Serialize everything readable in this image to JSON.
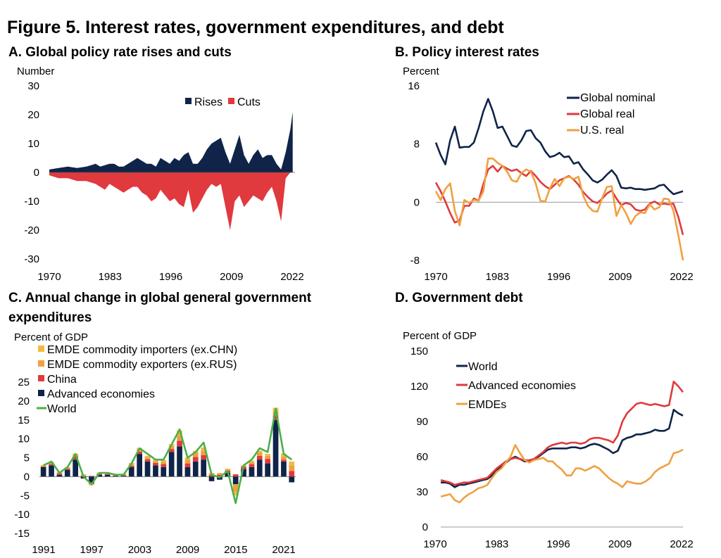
{
  "figure_title": "Figure 5. Interest rates, government expenditures, and debt",
  "colors": {
    "navy": "#0f2448",
    "red": "#e0393e",
    "orange": "#f0a040",
    "amber": "#f2bb3e",
    "green": "#4daf4a",
    "axis": "#999999"
  },
  "chart_data": [
    {
      "id": "A",
      "type": "area",
      "title": "A. Global policy rate rises and cuts",
      "ylabel": "Number",
      "ylim": [
        -30,
        30
      ],
      "yticks": [
        "30",
        "20",
        "10",
        "0",
        "-10",
        "-20",
        "-30"
      ],
      "xticks": [
        "1970",
        "1983",
        "1996",
        "2009",
        "2022"
      ],
      "xlim": [
        1970,
        2023
      ],
      "legend": [
        "Rises",
        "Cuts"
      ],
      "series": [
        {
          "name": "Rises",
          "x": [
            1970,
            1972,
            1974,
            1976,
            1978,
            1980,
            1981,
            1982,
            1983,
            1984,
            1985,
            1986,
            1987,
            1988,
            1989,
            1990,
            1991,
            1992,
            1993,
            1994,
            1995,
            1996,
            1997,
            1998,
            1999,
            2000,
            2001,
            2002,
            2003,
            2004,
            2005,
            2006,
            2007,
            2008,
            2009,
            2010,
            2011,
            2012,
            2013,
            2014,
            2015,
            2016,
            2017,
            2018,
            2019,
            2020,
            2021,
            2022,
            2022.5
          ],
          "values": [
            1,
            1.5,
            2,
            1.5,
            2,
            3,
            2,
            2.5,
            3,
            3,
            2,
            2,
            3,
            4,
            5,
            4,
            3,
            3,
            2,
            5,
            4,
            3,
            5,
            4,
            6,
            7,
            3,
            3,
            5,
            8,
            10,
            11,
            12,
            7,
            3,
            8,
            13,
            6,
            3,
            6,
            8,
            5,
            6,
            6,
            3,
            1,
            7,
            15,
            21
          ]
        },
        {
          "name": "Cuts",
          "x": [
            1970,
            1972,
            1974,
            1976,
            1978,
            1980,
            1981,
            1982,
            1983,
            1984,
            1985,
            1986,
            1987,
            1988,
            1989,
            1990,
            1991,
            1992,
            1993,
            1994,
            1995,
            1996,
            1997,
            1998,
            1999,
            2000,
            2001,
            2002,
            2003,
            2004,
            2005,
            2006,
            2007,
            2008,
            2009,
            2010,
            2011,
            2012,
            2013,
            2014,
            2015,
            2016,
            2017,
            2018,
            2019,
            2020,
            2021,
            2022,
            2022.5
          ],
          "values": [
            -1,
            -2,
            -2,
            -3,
            -3,
            -4,
            -5,
            -6,
            -4,
            -5,
            -6,
            -7,
            -6,
            -5,
            -5,
            -7,
            -8,
            -10,
            -9,
            -6,
            -8,
            -10,
            -9,
            -11,
            -12,
            -6,
            -14,
            -12,
            -9,
            -6,
            -4,
            -5,
            -4,
            -12,
            -20,
            -10,
            -8,
            -12,
            -10,
            -8,
            -9,
            -10,
            -7,
            -5,
            -10,
            -17,
            -2,
            0,
            0
          ]
        }
      ]
    },
    {
      "id": "B",
      "type": "line",
      "title": "B. Policy interest rates",
      "ylabel": "Percent",
      "ylim": [
        -8,
        16
      ],
      "yticks": [
        "16",
        "8",
        "0",
        "-8"
      ],
      "xticks": [
        "1970",
        "1983",
        "1996",
        "2009",
        "2022"
      ],
      "xlim": [
        1970,
        2022
      ],
      "legend": [
        "Global nominal",
        "Global real",
        "U.S. real"
      ],
      "x": [
        1970,
        1971,
        1972,
        1973,
        1974,
        1975,
        1976,
        1977,
        1978,
        1979,
        1980,
        1981,
        1982,
        1983,
        1984,
        1985,
        1986,
        1987,
        1988,
        1989,
        1990,
        1991,
        1992,
        1993,
        1994,
        1995,
        1996,
        1997,
        1998,
        1999,
        2000,
        2001,
        2002,
        2003,
        2004,
        2005,
        2006,
        2007,
        2008,
        2009,
        2010,
        2011,
        2012,
        2013,
        2014,
        2015,
        2016,
        2017,
        2018,
        2019,
        2020,
        2021,
        2022
      ],
      "series": [
        {
          "name": "Global nominal",
          "values": [
            8.2,
            6.5,
            5.2,
            8.5,
            10.4,
            7.5,
            7.6,
            7.6,
            8.2,
            10.2,
            12.5,
            14.2,
            12.5,
            10.2,
            10.4,
            9.1,
            7.8,
            7.6,
            8.5,
            9.8,
            9.9,
            8.8,
            8.2,
            7.0,
            6.2,
            6.4,
            6.8,
            6.2,
            6.3,
            5.3,
            5.5,
            4.5,
            3.8,
            3.0,
            2.7,
            3.1,
            3.8,
            4.4,
            3.6,
            2.0,
            1.9,
            2.0,
            1.8,
            1.8,
            1.7,
            1.8,
            1.9,
            2.3,
            2.4,
            1.7,
            1.1,
            1.3,
            1.5
          ]
        },
        {
          "name": "Global real",
          "values": [
            2.7,
            1.5,
            0.1,
            -1.5,
            -2.8,
            -2.5,
            -0.5,
            -0.5,
            0.5,
            0.2,
            2.5,
            4.5,
            5.0,
            4.2,
            5.0,
            4.6,
            4.3,
            4.5,
            4.0,
            3.6,
            4.3,
            3.6,
            2.8,
            2.2,
            1.8,
            2.4,
            3.0,
            3.3,
            3.6,
            3.1,
            2.4,
            1.4,
            0.7,
            0.1,
            -0.1,
            0.5,
            1.2,
            1.6,
            0.5,
            -0.4,
            -0.1,
            -0.3,
            -1.0,
            -1.2,
            -1.0,
            -0.2,
            0.1,
            -0.3,
            -0.2,
            -0.3,
            -0.2,
            -2.0,
            -4.5
          ]
        },
        {
          "name": "U.S. real",
          "values": [
            1.5,
            0.3,
            1.8,
            2.6,
            -1.2,
            -3.2,
            0.3,
            -0.1,
            0.3,
            0.2,
            1.5,
            6.0,
            6.0,
            5.4,
            5.0,
            4.2,
            3.0,
            2.8,
            4.0,
            4.5,
            4.2,
            2.6,
            0.2,
            0.1,
            1.9,
            3.2,
            2.2,
            3.3,
            3.5,
            3.2,
            3.5,
            0.9,
            -0.5,
            -1.2,
            -1.3,
            0.6,
            2.1,
            2.2,
            -1.9,
            -0.4,
            -1.5,
            -3.0,
            -1.9,
            -1.4,
            -1.5,
            -0.3,
            -1.0,
            -0.7,
            0.5,
            0.4,
            -1.2,
            -4.5,
            -8.0
          ]
        }
      ]
    },
    {
      "id": "C",
      "type": "bar",
      "title_lines": [
        "C. Annual change in global general government",
        "expenditures"
      ],
      "ylabel": "Percent of GDP",
      "ylim": [
        -15,
        25
      ],
      "yticks": [
        "25",
        "20",
        "15",
        "10",
        "5",
        "0",
        "-5",
        "-10",
        "-15"
      ],
      "xticks": [
        "1991",
        "1997",
        "2003",
        "2009",
        "2015",
        "2021"
      ],
      "legend": [
        "EMDE commodity importers (ex.CHN)",
        "EMDE commodity exporters (ex.RUS)",
        "China",
        "Advanced economies",
        "World"
      ],
      "categories": [
        "1991",
        "1992",
        "1993",
        "1994",
        "1995",
        "1996",
        "1997",
        "1998",
        "1999",
        "2000",
        "2001",
        "2002",
        "2003",
        "2004",
        "2005",
        "2006",
        "2007",
        "2008",
        "2009",
        "2010",
        "2011",
        "2012",
        "2013",
        "2014",
        "2015",
        "2016",
        "2017",
        "2018",
        "2019",
        "2020",
        "2021",
        "2022"
      ],
      "series": [
        {
          "name": "Advanced economies",
          "values": [
            2.5,
            3.0,
            0.5,
            1.8,
            4.5,
            -0.5,
            -1.8,
            0.5,
            0.5,
            0.2,
            0.2,
            2.5,
            6.0,
            4.0,
            3.0,
            2.5,
            6.5,
            8.0,
            2.5,
            4.0,
            4.5,
            -1.2,
            -0.8,
            1.0,
            -2.0,
            2.0,
            2.5,
            4.5,
            3.5,
            15.0,
            4.0,
            -1.5
          ]
        },
        {
          "name": "China",
          "values": [
            0.2,
            0.3,
            0.3,
            0.3,
            0.8,
            0.2,
            0.2,
            0.2,
            0.2,
            0.1,
            0.2,
            0.4,
            0.6,
            0.6,
            0.6,
            0.8,
            0.8,
            1.5,
            1.0,
            1.2,
            1.2,
            0.5,
            0.5,
            0.6,
            0.6,
            0.6,
            0.8,
            1.0,
            1.2,
            1.2,
            0.5,
            1.5
          ]
        },
        {
          "name": "EMDE commodity exporters (ex.RUS)",
          "values": [
            0.2,
            0.3,
            0.2,
            0.2,
            0.5,
            0.2,
            -0.3,
            0.2,
            0.2,
            0.2,
            0.2,
            0.4,
            0.6,
            0.5,
            0.5,
            0.6,
            0.8,
            1.5,
            1.0,
            1.0,
            1.2,
            0.3,
            0.3,
            0.3,
            -2.0,
            0.2,
            0.5,
            0.8,
            0.8,
            1.0,
            0.8,
            1.5
          ]
        },
        {
          "name": "EMDE commodity importers (ex.CHN)",
          "values": [
            0.2,
            0.2,
            0.2,
            0.2,
            0.3,
            0.2,
            -0.2,
            0.2,
            0.1,
            0.1,
            0.2,
            0.3,
            0.4,
            0.4,
            0.4,
            0.5,
            0.5,
            1.2,
            0.5,
            0.6,
            0.8,
            0.2,
            0.2,
            0.2,
            -1.0,
            0.2,
            0.4,
            0.5,
            0.5,
            1.0,
            0.8,
            1.0
          ]
        },
        {
          "name": "World",
          "values": [
            3.0,
            4.0,
            1.0,
            2.5,
            6.0,
            0.0,
            -2.0,
            1.0,
            1.0,
            0.5,
            0.5,
            3.5,
            7.5,
            6.0,
            4.5,
            4.5,
            8.5,
            12.5,
            5.0,
            6.5,
            9.0,
            0.5,
            -0.2,
            1.5,
            -7.0,
            3.0,
            4.5,
            7.5,
            6.5,
            18.0,
            6.0,
            4.5
          ]
        }
      ]
    },
    {
      "id": "D",
      "type": "line",
      "title": "D. Government debt",
      "ylabel": "Percent of GDP",
      "ylim": [
        0,
        150
      ],
      "yticks": [
        "150",
        "120",
        "90",
        "60",
        "30",
        "0"
      ],
      "xticks": [
        "1970",
        "1983",
        "1996",
        "2009",
        "2022"
      ],
      "xlim": [
        1970,
        2022
      ],
      "legend": [
        "World",
        "Advanced economies",
        "EMDEs"
      ],
      "x": [
        1970,
        1971,
        1972,
        1973,
        1974,
        1975,
        1976,
        1977,
        1978,
        1979,
        1980,
        1981,
        1982,
        1983,
        1984,
        1985,
        1986,
        1987,
        1988,
        1989,
        1990,
        1991,
        1992,
        1993,
        1994,
        1995,
        1996,
        1997,
        1998,
        1999,
        2000,
        2001,
        2002,
        2003,
        2004,
        2005,
        2006,
        2007,
        2008,
        2009,
        2010,
        2011,
        2012,
        2013,
        2014,
        2015,
        2016,
        2017,
        2018,
        2019,
        2020,
        2021,
        2022
      ],
      "series": [
        {
          "name": "World",
          "values": [
            38,
            38,
            37,
            34,
            36,
            36,
            37,
            38,
            39,
            40,
            41,
            44,
            48,
            52,
            55,
            58,
            60,
            58,
            56,
            56,
            58,
            60,
            63,
            66,
            67,
            67,
            67,
            67,
            68,
            68,
            67,
            68,
            70,
            71,
            70,
            68,
            66,
            63,
            65,
            74,
            76,
            77,
            79,
            79,
            80,
            81,
            83,
            82,
            82,
            84,
            100,
            97,
            95
          ]
        },
        {
          "name": "Advanced economies",
          "values": [
            40,
            39,
            38,
            36,
            37,
            38,
            38,
            39,
            40,
            41,
            42,
            46,
            50,
            53,
            56,
            58,
            59,
            58,
            57,
            57,
            58,
            61,
            64,
            68,
            70,
            71,
            72,
            71,
            72,
            72,
            71,
            72,
            75,
            76,
            76,
            75,
            74,
            72,
            78,
            90,
            97,
            101,
            105,
            106,
            105,
            104,
            105,
            104,
            103,
            104,
            124,
            120,
            115
          ]
        },
        {
          "name": "EMDEs",
          "values": [
            26,
            27,
            28,
            23,
            21,
            25,
            28,
            30,
            33,
            34,
            36,
            42,
            47,
            50,
            55,
            60,
            70,
            63,
            57,
            55,
            57,
            58,
            59,
            56,
            56,
            52,
            49,
            44,
            44,
            50,
            50,
            48,
            50,
            52,
            50,
            46,
            42,
            39,
            37,
            34,
            39,
            38,
            37,
            37,
            39,
            42,
            47,
            50,
            52,
            54,
            63,
            64,
            66
          ]
        }
      ]
    }
  ]
}
